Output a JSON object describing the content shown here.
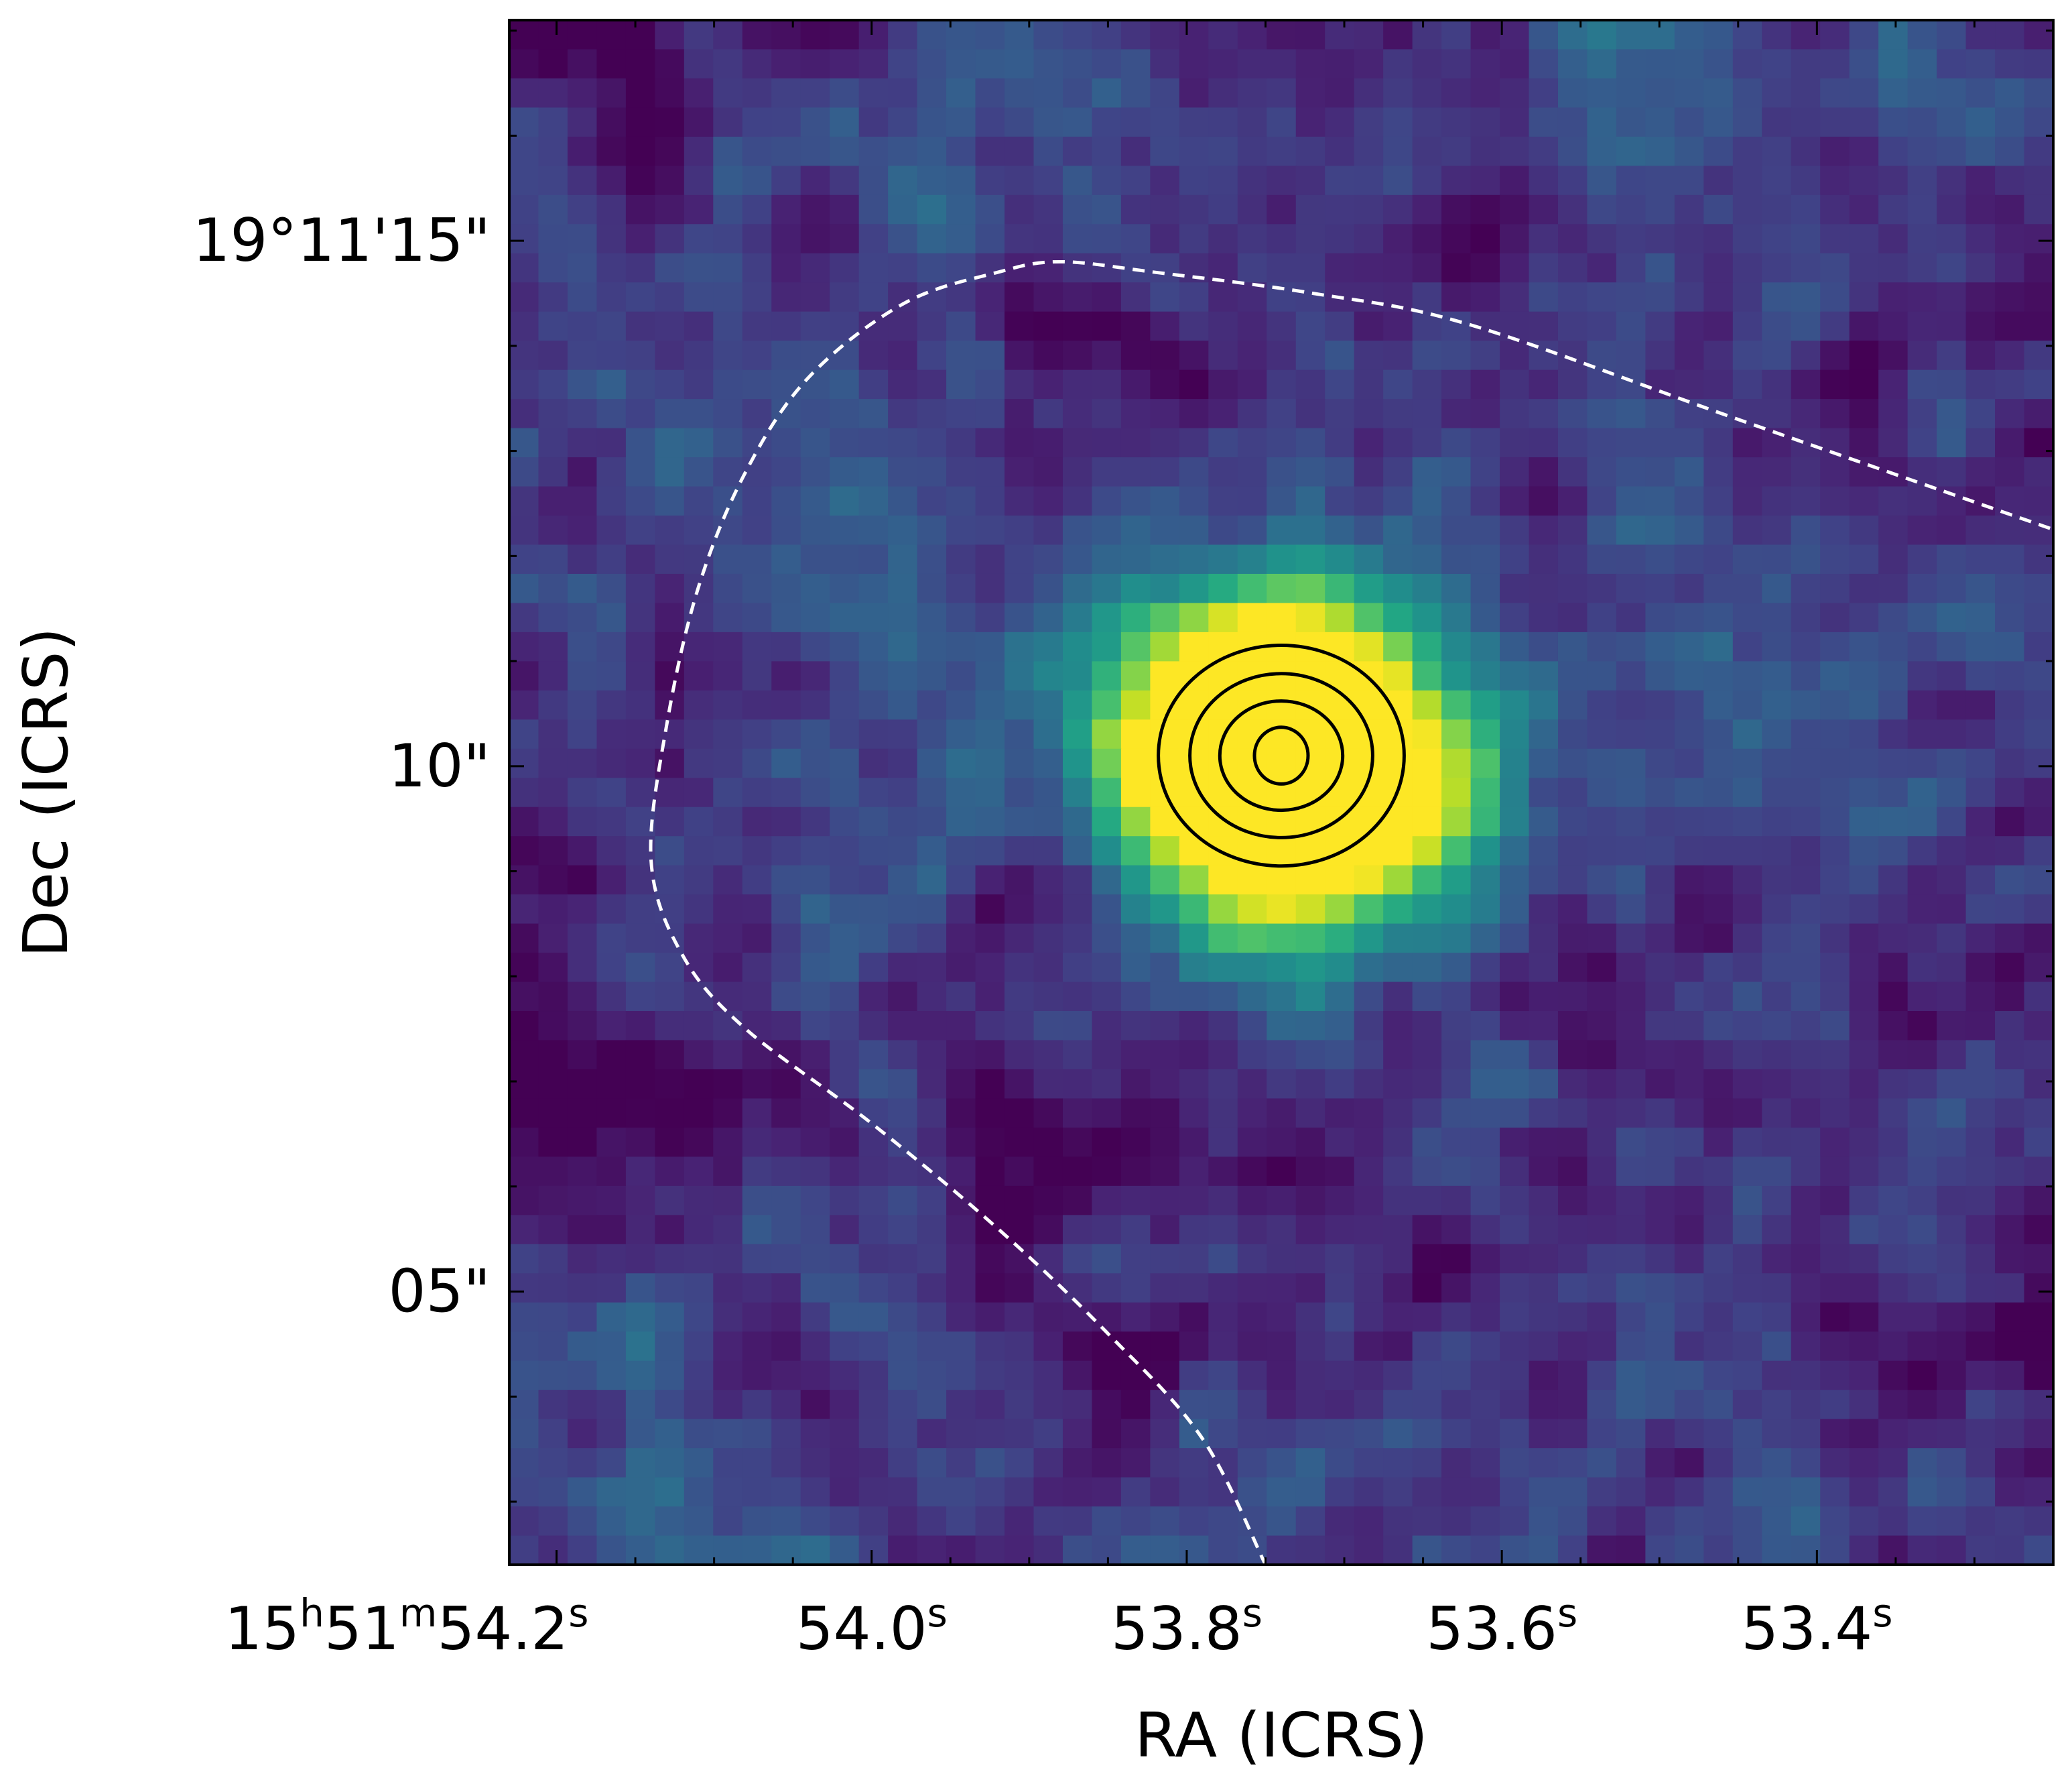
{
  "chart_data": {
    "type": "heatmap",
    "title": "",
    "colormap": "viridis",
    "xlabel": "RA (ICRS)",
    "ylabel": "Dec (ICRS)",
    "x_units": "seconds of RA past 15h51m",
    "y_units": "arcseconds of Dec past 19°11'",
    "xlim": [
      54.23,
      53.25
    ],
    "ylim": [
      2.4,
      17.1
    ],
    "x_ticks": [
      {
        "value": 54.2,
        "label_main": "15",
        "label_h": "h",
        "label_mid": "51",
        "label_m": "m",
        "label_sec": "54.2",
        "label_s": "s"
      },
      {
        "value": 54.0,
        "label_sec": "54.0",
        "label_s": "s"
      },
      {
        "value": 53.8,
        "label_sec": "53.8",
        "label_s": "s"
      },
      {
        "value": 53.6,
        "label_sec": "53.6",
        "label_s": "s"
      },
      {
        "value": 53.4,
        "label_sec": "53.4",
        "label_s": "s"
      }
    ],
    "y_ticks": [
      {
        "value": 15,
        "label": "19°11'15\""
      },
      {
        "value": 10,
        "label": "10\""
      },
      {
        "value": 5,
        "label": "05\""
      }
    ],
    "source": {
      "ra": 53.74,
      "dec": 10.1,
      "peak_sigma_arcsec": 1.1,
      "contour_levels": [
        {
          "ra_radius_s": 0.078,
          "dec_radius_arcsec": 1.05
        },
        {
          "ra_radius_s": 0.058,
          "dec_radius_arcsec": 0.78
        },
        {
          "ra_radius_s": 0.039,
          "dec_radius_arcsec": 0.52
        },
        {
          "ra_radius_s": 0.017,
          "dec_radius_arcsec": 0.27
        }
      ],
      "contour_color": "#000000",
      "peak_color": "#fde725"
    },
    "dashed_boundary": {
      "color": "#ffffff",
      "points": [
        {
          "ra": 53.24,
          "dec": 12.2
        },
        {
          "ra": 53.45,
          "dec": 13.3
        },
        {
          "ra": 53.62,
          "dec": 14.2
        },
        {
          "ra": 53.72,
          "dec": 14.5
        },
        {
          "ra": 53.82,
          "dec": 14.7
        },
        {
          "ra": 53.88,
          "dec": 14.8
        },
        {
          "ra": 53.92,
          "dec": 14.7
        },
        {
          "ra": 53.98,
          "dec": 14.4
        },
        {
          "ra": 54.04,
          "dec": 13.7
        },
        {
          "ra": 54.08,
          "dec": 12.8
        },
        {
          "ra": 54.11,
          "dec": 11.7
        },
        {
          "ra": 54.13,
          "dec": 10.4
        },
        {
          "ra": 54.14,
          "dec": 9.1
        },
        {
          "ra": 54.12,
          "dec": 8.2
        },
        {
          "ra": 54.08,
          "dec": 7.5
        },
        {
          "ra": 54.0,
          "dec": 6.6
        },
        {
          "ra": 53.92,
          "dec": 5.6
        },
        {
          "ra": 53.85,
          "dec": 4.6
        },
        {
          "ra": 53.79,
          "dec": 3.6
        },
        {
          "ra": 53.75,
          "dec": 2.4
        }
      ]
    },
    "dark_spots": [
      {
        "ra": 53.86,
        "dec": 14.0
      },
      {
        "ra": 54.2,
        "dec": 7.0
      },
      {
        "ra": 53.25,
        "dec": 5.4
      },
      {
        "ra": 53.88,
        "dec": 6.0
      },
      {
        "ra": 54.18,
        "dec": 16.7
      },
      {
        "ra": 53.9,
        "dec": 9.2
      }
    ],
    "bright_spots": [
      {
        "ra": 53.9,
        "dec": 15.7
      },
      {
        "ra": 53.52,
        "dec": 16.4
      },
      {
        "ra": 54.02,
        "dec": 13.2
      },
      {
        "ra": 54.2,
        "dec": 2.8
      },
      {
        "ra": 53.47,
        "dec": 10.5
      },
      {
        "ra": 53.98,
        "dec": 10.3
      }
    ]
  }
}
